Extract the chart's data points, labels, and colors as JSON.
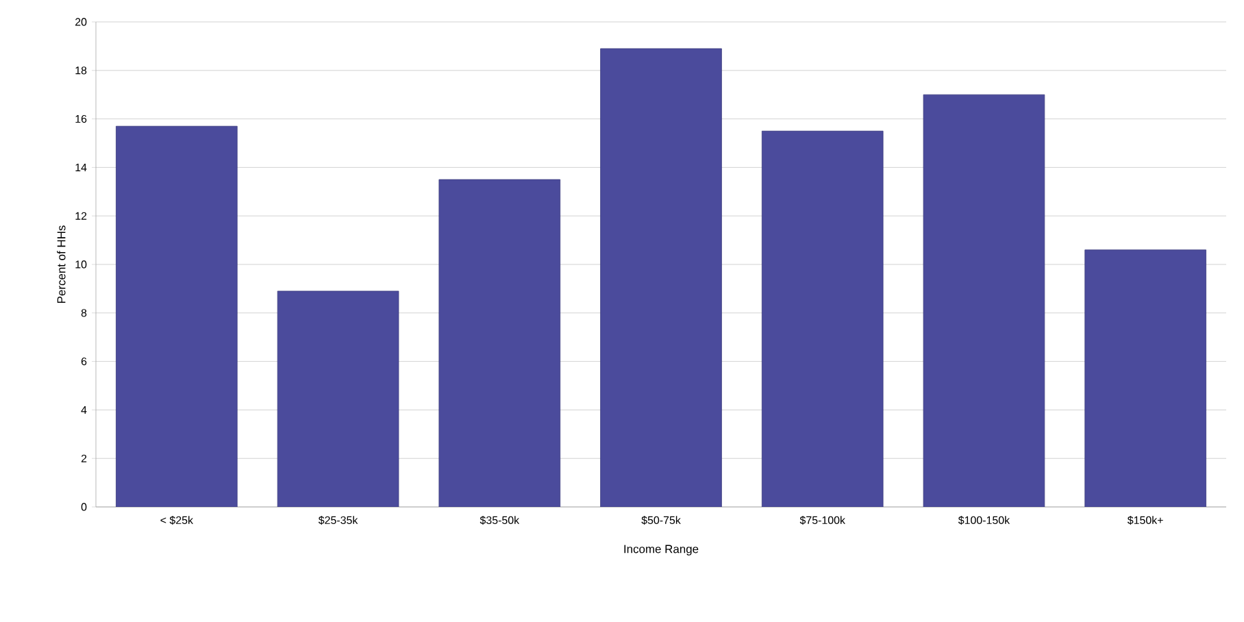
{
  "chart_data": {
    "type": "bar",
    "xlabel": "Income Range",
    "ylabel": "Percent of HHs",
    "categories": [
      "< $25k",
      "$25-35k",
      "$35-50k",
      "$50-75k",
      "$75-100k",
      "$100-150k",
      "$150k+"
    ],
    "values": [
      15.7,
      8.9,
      13.5,
      18.9,
      15.5,
      17.0,
      10.6
    ],
    "color": "#4b4b9c",
    "ylim": [
      0,
      20
    ],
    "yticks": [
      0,
      2,
      4,
      6,
      8,
      10,
      12,
      14,
      16,
      18,
      20
    ],
    "grid": "y"
  }
}
